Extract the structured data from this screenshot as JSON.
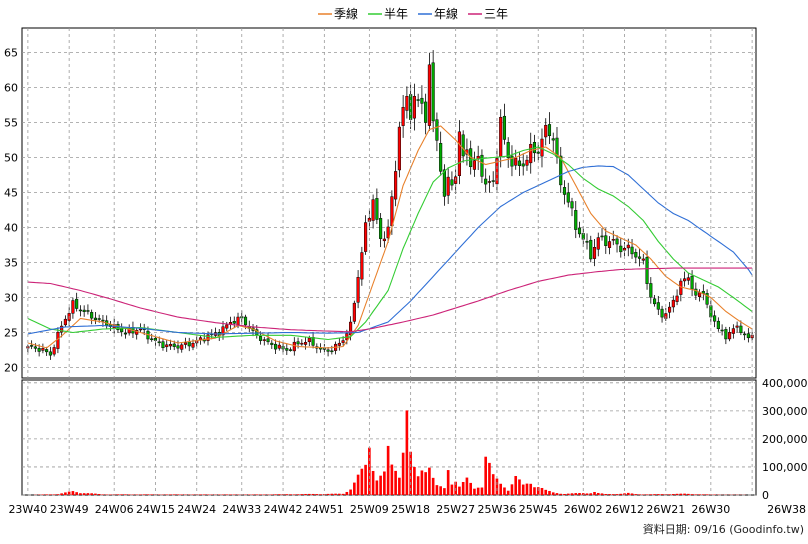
{
  "chart_data": {
    "type": "candlestick",
    "legend": [
      {
        "name": "季線",
        "color": "#e8802a"
      },
      {
        "name": "半年",
        "color": "#33cc33"
      },
      {
        "name": "年線",
        "color": "#2f6fd6"
      },
      {
        "name": "三年",
        "color": "#cc2277"
      }
    ],
    "price_axis": {
      "ylim": [
        18.5,
        68.5
      ],
      "ticks": [
        20,
        25,
        30,
        35,
        40,
        45,
        50,
        55,
        60,
        65
      ]
    },
    "volume_axis": {
      "ylim": [
        0,
        410000
      ],
      "ticks": [
        "0",
        "100,000",
        "200,000",
        "300,000",
        "400,000"
      ],
      "tick_values": [
        0,
        100000,
        200000,
        300000,
        400000
      ]
    },
    "x_ticks": [
      "23W40",
      "23W49",
      "24W06",
      "24W15",
      "24W24",
      "24W33",
      "24W42",
      "24W51",
      "25W09",
      "25W18",
      "25W27",
      "25W36",
      "25W45",
      "26W02",
      "26W12",
      "26W21",
      "26W30",
      "26W38"
    ],
    "footer": "資料日期: 09/16  (Goodinfo.tw)",
    "colors": {
      "up": "#ff0000",
      "down": "#00aa00",
      "volume": "#ff0000",
      "grid": "#999999"
    },
    "keyframes_close": [
      [
        0,
        23.0
      ],
      [
        4,
        22.5
      ],
      [
        6,
        21.8
      ],
      [
        9,
        26.0
      ],
      [
        12,
        29.0
      ],
      [
        15,
        28.0
      ],
      [
        18,
        27.0
      ],
      [
        22,
        26.0
      ],
      [
        26,
        25.0
      ],
      [
        30,
        25.5
      ],
      [
        33,
        24.0
      ],
      [
        36,
        23.2
      ],
      [
        40,
        23.0
      ],
      [
        44,
        23.5
      ],
      [
        48,
        24.5
      ],
      [
        51,
        25.0
      ],
      [
        54,
        26.5
      ],
      [
        57,
        27.0
      ],
      [
        60,
        25.0
      ],
      [
        63,
        23.8
      ],
      [
        66,
        23.0
      ],
      [
        69,
        22.5
      ],
      [
        72,
        23.5
      ],
      [
        75,
        23.8
      ],
      [
        78,
        22.5
      ],
      [
        81,
        22.5
      ],
      [
        84,
        24.0
      ],
      [
        86,
        26.0
      ],
      [
        88,
        33.0
      ],
      [
        90,
        40.0
      ],
      [
        92,
        44.0
      ],
      [
        94,
        38.0
      ],
      [
        96,
        40.0
      ],
      [
        98,
        48.0
      ],
      [
        99,
        55.0
      ],
      [
        100,
        57.0
      ],
      [
        101,
        58.0
      ],
      [
        102,
        56.0
      ],
      [
        103,
        59.0
      ],
      [
        104,
        58.0
      ],
      [
        105,
        57.0
      ],
      [
        106,
        56.0
      ],
      [
        107,
        63.0
      ],
      [
        108,
        55.0
      ],
      [
        109,
        52.0
      ],
      [
        110,
        49.0
      ],
      [
        111,
        44.0
      ],
      [
        112,
        47.0
      ],
      [
        113,
        46.0
      ],
      [
        114,
        48.0
      ],
      [
        115,
        53.0
      ],
      [
        116,
        50.0
      ],
      [
        117,
        51.5
      ],
      [
        118,
        49.0
      ],
      [
        119,
        49.0
      ],
      [
        120,
        50.0
      ],
      [
        122,
        46.0
      ],
      [
        124,
        46.5
      ],
      [
        126,
        55.0
      ],
      [
        128,
        50.0
      ],
      [
        130,
        49.0
      ],
      [
        132,
        49.0
      ],
      [
        134,
        51.0
      ],
      [
        136,
        51.0
      ],
      [
        138,
        54.0
      ],
      [
        140,
        53.0
      ],
      [
        142,
        46.0
      ],
      [
        144,
        44.0
      ],
      [
        146,
        40.0
      ],
      [
        148,
        38.5
      ],
      [
        150,
        36.0
      ],
      [
        152,
        38.5
      ],
      [
        154,
        38.0
      ],
      [
        156,
        38.0
      ],
      [
        158,
        37.0
      ],
      [
        160,
        37.0
      ],
      [
        162,
        36.0
      ],
      [
        164,
        35.0
      ],
      [
        166,
        30.0
      ],
      [
        168,
        28.0
      ],
      [
        170,
        27.5
      ],
      [
        172,
        29.5
      ],
      [
        174,
        32.0
      ],
      [
        176,
        33.0
      ],
      [
        178,
        30.0
      ],
      [
        180,
        31.0
      ],
      [
        182,
        27.0
      ],
      [
        184,
        26.0
      ],
      [
        186,
        24.0
      ],
      [
        188,
        26.0
      ],
      [
        190,
        25.0
      ],
      [
        192,
        24.5
      ],
      [
        193,
        24.2
      ]
    ],
    "keyframes_volume": [
      [
        0,
        0
      ],
      [
        8,
        3000
      ],
      [
        12,
        12000
      ],
      [
        14,
        8000
      ],
      [
        20,
        2000
      ],
      [
        60,
        1500
      ],
      [
        84,
        4000
      ],
      [
        86,
        22000
      ],
      [
        88,
        60000
      ],
      [
        90,
        90000
      ],
      [
        91,
        160000
      ],
      [
        92,
        100000
      ],
      [
        93,
        60000
      ],
      [
        95,
        70000
      ],
      [
        96,
        140000
      ],
      [
        97,
        90000
      ],
      [
        99,
        70000
      ],
      [
        100,
        180000
      ],
      [
        101,
        290000
      ],
      [
        102,
        130000
      ],
      [
        103,
        80000
      ],
      [
        104,
        55000
      ],
      [
        105,
        80000
      ],
      [
        106,
        90000
      ],
      [
        107,
        120000
      ],
      [
        108,
        60000
      ],
      [
        109,
        30000
      ],
      [
        111,
        20000
      ],
      [
        112,
        80000
      ],
      [
        113,
        40000
      ],
      [
        114,
        60000
      ],
      [
        115,
        30000
      ],
      [
        117,
        50000
      ],
      [
        119,
        20000
      ],
      [
        121,
        35000
      ],
      [
        122,
        140000
      ],
      [
        123,
        100000
      ],
      [
        124,
        60000
      ],
      [
        126,
        35000
      ],
      [
        128,
        20000
      ],
      [
        130,
        60000
      ],
      [
        132,
        30000
      ],
      [
        134,
        40000
      ],
      [
        136,
        30000
      ],
      [
        138,
        15000
      ],
      [
        140,
        8000
      ],
      [
        143,
        4000
      ],
      [
        147,
        6000
      ],
      [
        150,
        7000
      ],
      [
        151,
        10000
      ],
      [
        152,
        6000
      ],
      [
        154,
        3000
      ],
      [
        158,
        4000
      ],
      [
        160,
        6000
      ],
      [
        162,
        3000
      ],
      [
        165,
        2000
      ],
      [
        170,
        3000
      ],
      [
        175,
        4000
      ],
      [
        180,
        2000
      ],
      [
        185,
        1000
      ],
      [
        193,
        500
      ]
    ],
    "series": [
      {
        "name": "季線",
        "keyframes": [
          [
            0,
            23.5
          ],
          [
            5,
            22.8
          ],
          [
            9,
            24.5
          ],
          [
            14,
            27.0
          ],
          [
            20,
            26.5
          ],
          [
            30,
            25.0
          ],
          [
            40,
            23.5
          ],
          [
            50,
            24.2
          ],
          [
            56,
            26.0
          ],
          [
            60,
            25.5
          ],
          [
            66,
            23.8
          ],
          [
            72,
            23.0
          ],
          [
            80,
            22.8
          ],
          [
            84,
            23.0
          ],
          [
            88,
            26.0
          ],
          [
            92,
            32.0
          ],
          [
            96,
            38.0
          ],
          [
            100,
            46.0
          ],
          [
            104,
            51.0
          ],
          [
            107,
            54.0
          ],
          [
            110,
            54.5
          ],
          [
            114,
            52.5
          ],
          [
            118,
            50.0
          ],
          [
            122,
            49.0
          ],
          [
            126,
            49.5
          ],
          [
            130,
            50.0
          ],
          [
            134,
            51.0
          ],
          [
            138,
            51.5
          ],
          [
            142,
            50.0
          ],
          [
            146,
            46.0
          ],
          [
            150,
            42.0
          ],
          [
            154,
            39.5
          ],
          [
            158,
            38.5
          ],
          [
            162,
            37.5
          ],
          [
            166,
            35.5
          ],
          [
            170,
            33.0
          ],
          [
            174,
            31.5
          ],
          [
            178,
            31.0
          ],
          [
            182,
            30.0
          ],
          [
            186,
            28.0
          ],
          [
            190,
            26.5
          ],
          [
            193,
            25.5
          ]
        ]
      },
      {
        "name": "半年",
        "keyframes": [
          [
            0,
            27.0
          ],
          [
            6,
            25.5
          ],
          [
            12,
            25.0
          ],
          [
            20,
            25.5
          ],
          [
            30,
            25.7
          ],
          [
            40,
            25.0
          ],
          [
            50,
            24.3
          ],
          [
            60,
            24.6
          ],
          [
            70,
            24.6
          ],
          [
            80,
            24.0
          ],
          [
            86,
            24.4
          ],
          [
            90,
            26.5
          ],
          [
            96,
            31.0
          ],
          [
            100,
            37.0
          ],
          [
            104,
            42.0
          ],
          [
            108,
            46.5
          ],
          [
            112,
            48.5
          ],
          [
            116,
            49.5
          ],
          [
            120,
            49.8
          ],
          [
            124,
            50.0
          ],
          [
            128,
            50.2
          ],
          [
            132,
            51.0
          ],
          [
            136,
            51.5
          ],
          [
            140,
            50.5
          ],
          [
            144,
            49.0
          ],
          [
            148,
            47.0
          ],
          [
            152,
            45.5
          ],
          [
            156,
            44.5
          ],
          [
            160,
            43.0
          ],
          [
            164,
            41.0
          ],
          [
            168,
            38.0
          ],
          [
            172,
            35.5
          ],
          [
            176,
            33.5
          ],
          [
            180,
            32.5
          ],
          [
            184,
            31.5
          ],
          [
            188,
            30.0
          ],
          [
            193,
            28.0
          ]
        ]
      },
      {
        "name": "年線",
        "keyframes": [
          [
            0,
            24.8
          ],
          [
            10,
            25.8
          ],
          [
            20,
            26.0
          ],
          [
            30,
            25.6
          ],
          [
            40,
            25.0
          ],
          [
            50,
            24.8
          ],
          [
            60,
            24.9
          ],
          [
            70,
            25.0
          ],
          [
            80,
            24.9
          ],
          [
            88,
            25.0
          ],
          [
            96,
            26.5
          ],
          [
            102,
            29.5
          ],
          [
            108,
            33.0
          ],
          [
            114,
            36.5
          ],
          [
            120,
            40.0
          ],
          [
            126,
            43.0
          ],
          [
            132,
            45.0
          ],
          [
            138,
            46.5
          ],
          [
            144,
            48.0
          ],
          [
            148,
            48.6
          ],
          [
            152,
            48.8
          ],
          [
            156,
            48.7
          ],
          [
            160,
            47.5
          ],
          [
            164,
            45.5
          ],
          [
            168,
            43.5
          ],
          [
            172,
            42.0
          ],
          [
            176,
            41.0
          ],
          [
            180,
            39.5
          ],
          [
            184,
            38.0
          ],
          [
            188,
            36.5
          ],
          [
            192,
            34.0
          ],
          [
            193,
            33.2
          ]
        ]
      },
      {
        "name": "三年",
        "keyframes": [
          [
            0,
            32.2
          ],
          [
            6,
            32.0
          ],
          [
            14,
            31.0
          ],
          [
            22,
            29.8
          ],
          [
            30,
            28.5
          ],
          [
            40,
            27.2
          ],
          [
            50,
            26.4
          ],
          [
            60,
            25.8
          ],
          [
            70,
            25.4
          ],
          [
            80,
            25.2
          ],
          [
            86,
            25.1
          ],
          [
            92,
            25.6
          ],
          [
            100,
            26.5
          ],
          [
            108,
            27.5
          ],
          [
            114,
            28.5
          ],
          [
            120,
            29.5
          ],
          [
            128,
            31.0
          ],
          [
            136,
            32.3
          ],
          [
            144,
            33.2
          ],
          [
            152,
            33.7
          ],
          [
            158,
            34.0
          ],
          [
            164,
            34.1
          ],
          [
            172,
            34.2
          ],
          [
            180,
            34.2
          ],
          [
            193,
            34.2
          ]
        ]
      }
    ]
  }
}
